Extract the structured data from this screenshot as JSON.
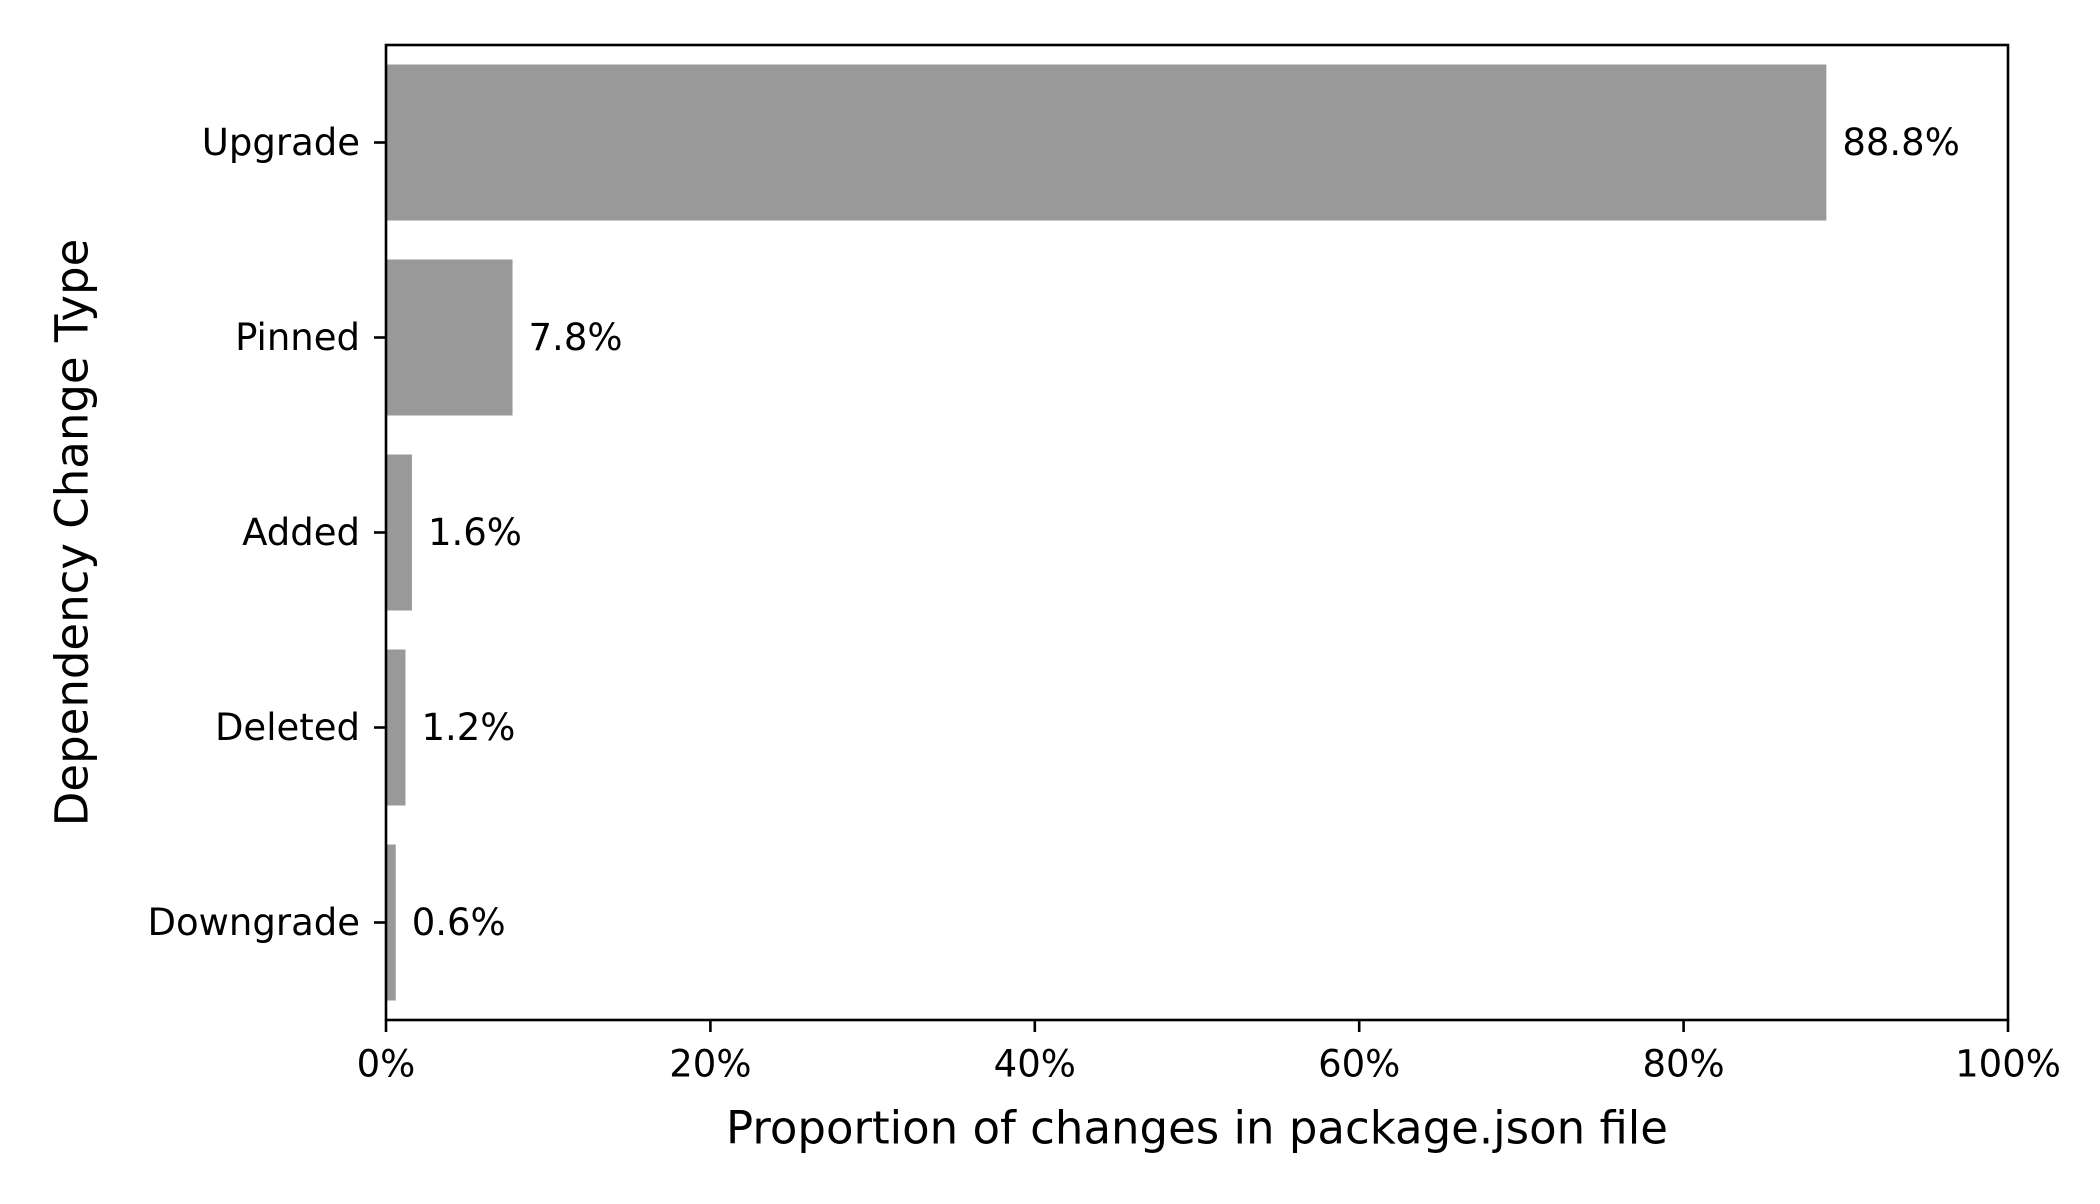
{
  "chart_data": {
    "type": "bar",
    "orientation": "horizontal",
    "categories": [
      "Upgrade",
      "Pinned",
      "Added",
      "Deleted",
      "Downgrade"
    ],
    "values": [
      88.8,
      7.8,
      1.6,
      1.2,
      0.6
    ],
    "value_labels": [
      "88.8%",
      "7.8%",
      "1.6%",
      "1.2%",
      "0.6%"
    ],
    "xlabel": "Proportion of changes in package.json file",
    "ylabel": "Dependency Change Type",
    "xlim": [
      0,
      100
    ],
    "xticks": [
      0,
      20,
      40,
      60,
      80,
      100
    ],
    "xtick_labels": [
      "0%",
      "20%",
      "40%",
      "60%",
      "80%",
      "100%"
    ],
    "grid": false,
    "legend": "none",
    "colors": {
      "bar": "#999999",
      "axis": "#000000"
    }
  }
}
